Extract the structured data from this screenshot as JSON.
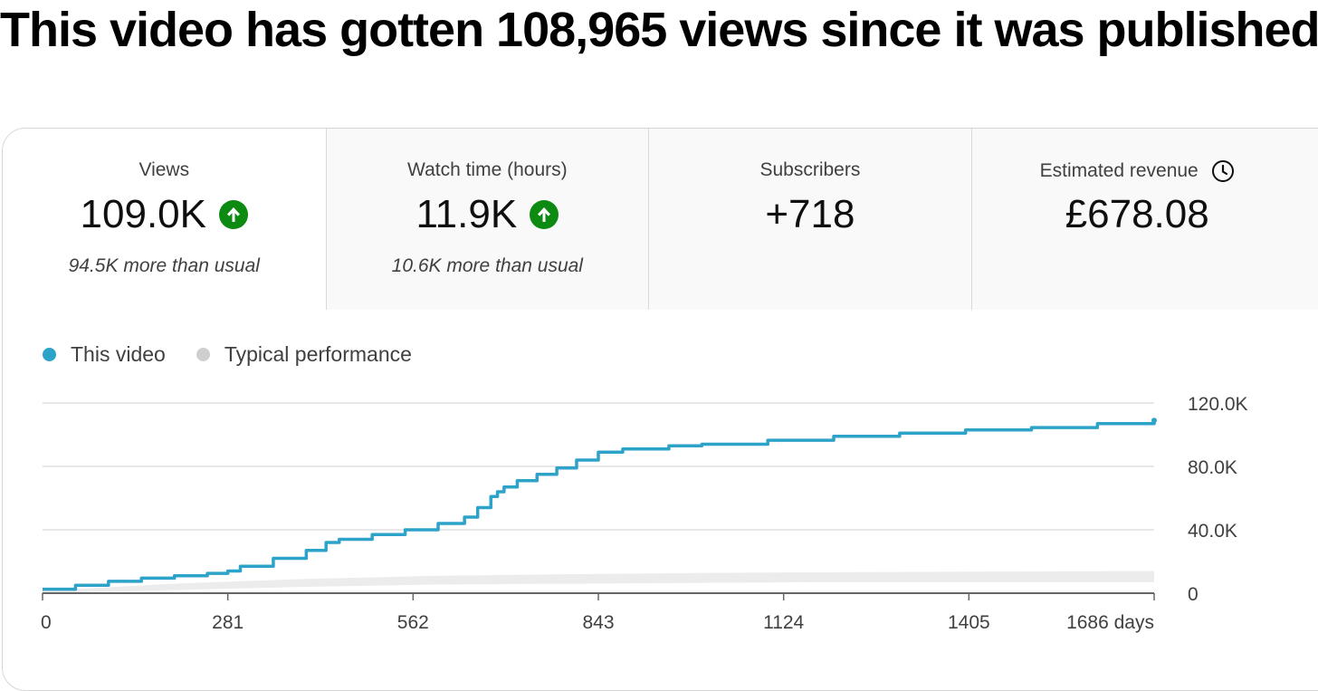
{
  "headline": "This video has gotten 108,965 views since it was published",
  "metrics": [
    {
      "label": "Views",
      "value": "109.0K",
      "trend": "up",
      "note": "94.5K more than usual"
    },
    {
      "label": "Watch time (hours)",
      "value": "11.9K",
      "trend": "up",
      "note": "10.6K more than usual"
    },
    {
      "label": "Subscribers",
      "value": "+718"
    },
    {
      "label": "Estimated revenue",
      "value": "£678.08",
      "icon": "clock-icon"
    }
  ],
  "colors": {
    "this_video": "#2ea3c9",
    "typical": "#cfcfcf",
    "trend_up": "#0c8a12",
    "gridline": "#e0e0e0",
    "axis": "#666666"
  },
  "chart_data": {
    "type": "line",
    "title": "",
    "xlabel": "",
    "ylabel": "",
    "legend_position": "top-left",
    "grid": true,
    "x_ticks": [
      "0",
      "281",
      "562",
      "843",
      "1124",
      "1405",
      "1686 days"
    ],
    "x_tick_values": [
      0,
      281,
      562,
      843,
      1124,
      1405,
      1686
    ],
    "y_ticks": [
      "0",
      "40.0K",
      "80.0K",
      "120.0K"
    ],
    "y_tick_values": [
      0,
      40000,
      80000,
      120000
    ],
    "xlim": [
      0,
      1686
    ],
    "ylim": [
      0,
      120000
    ],
    "series": [
      {
        "name": "This video",
        "x": [
          0,
          50,
          100,
          150,
          200,
          250,
          281,
          300,
          350,
          400,
          430,
          450,
          500,
          550,
          600,
          640,
          660,
          680,
          690,
          700,
          720,
          750,
          780,
          810,
          843,
          880,
          950,
          1000,
          1100,
          1200,
          1300,
          1400,
          1500,
          1600,
          1686
        ],
        "y": [
          2500,
          5000,
          7500,
          9500,
          11000,
          12500,
          14000,
          17000,
          22000,
          27000,
          32000,
          34000,
          37000,
          40000,
          44000,
          48000,
          54000,
          61000,
          64000,
          67000,
          71000,
          75000,
          79000,
          84000,
          89000,
          91000,
          93000,
          94000,
          96500,
          99000,
          101000,
          103000,
          104500,
          107000,
          109000
        ]
      },
      {
        "name": "Typical performance",
        "x": [
          0,
          200,
          400,
          600,
          800,
          1000,
          1200,
          1400,
          1686
        ],
        "y_low": [
          0,
          2000,
          4000,
          5500,
          6000,
          6500,
          7000,
          7000,
          7000
        ],
        "y_high": [
          1500,
          6000,
          9000,
          11000,
          12000,
          12800,
          13200,
          13600,
          14000
        ]
      }
    ]
  }
}
